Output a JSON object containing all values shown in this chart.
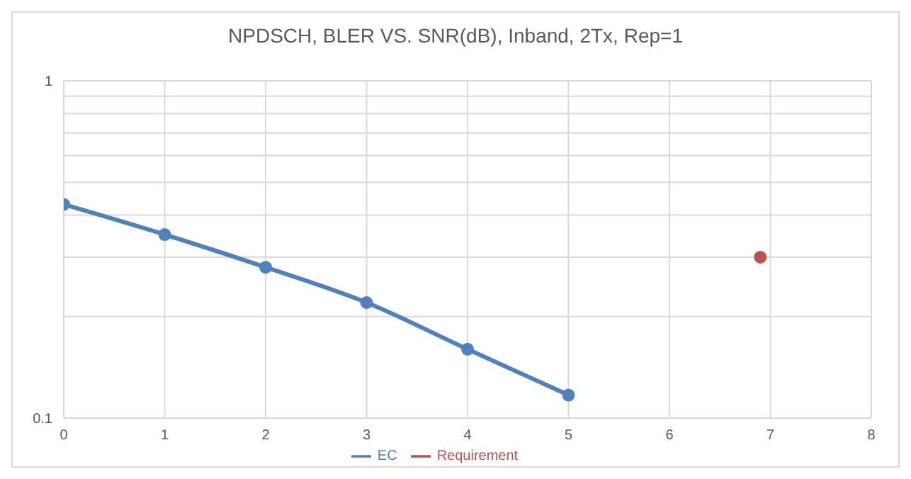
{
  "chart_data": {
    "type": "line",
    "title": "NPDSCH, BLER VS. SNR(dB), Inband, 2Tx, Rep=1",
    "series": [
      {
        "name": "EC",
        "color": "#4f81bd",
        "x": [
          0,
          1,
          2,
          3,
          4,
          5
        ],
        "values": [
          0.43,
          0.35,
          0.28,
          0.22,
          0.16,
          0.117
        ]
      },
      {
        "name": "Requirement",
        "color": "#c0504d",
        "x": [
          6.9
        ],
        "values": [
          0.3
        ]
      }
    ],
    "xlim": [
      0,
      8
    ],
    "xticks": [
      0,
      1,
      2,
      3,
      4,
      5,
      6,
      7,
      8
    ],
    "ylim": [
      0.1,
      1
    ],
    "yticks": [
      0.1,
      {
        "value": 0.2,
        "label": null
      },
      {
        "value": 0.3,
        "label": null
      },
      {
        "value": 0.4,
        "label": null
      },
      {
        "value": 0.5,
        "label": null
      },
      {
        "value": 0.6,
        "label": null
      },
      {
        "value": 0.7,
        "label": null
      },
      {
        "value": 0.8,
        "label": null
      },
      {
        "value": 0.9,
        "label": null
      },
      1
    ],
    "log": "y",
    "grid": true,
    "legend": "bottom",
    "marker": "circle",
    "line_style": "solid"
  }
}
